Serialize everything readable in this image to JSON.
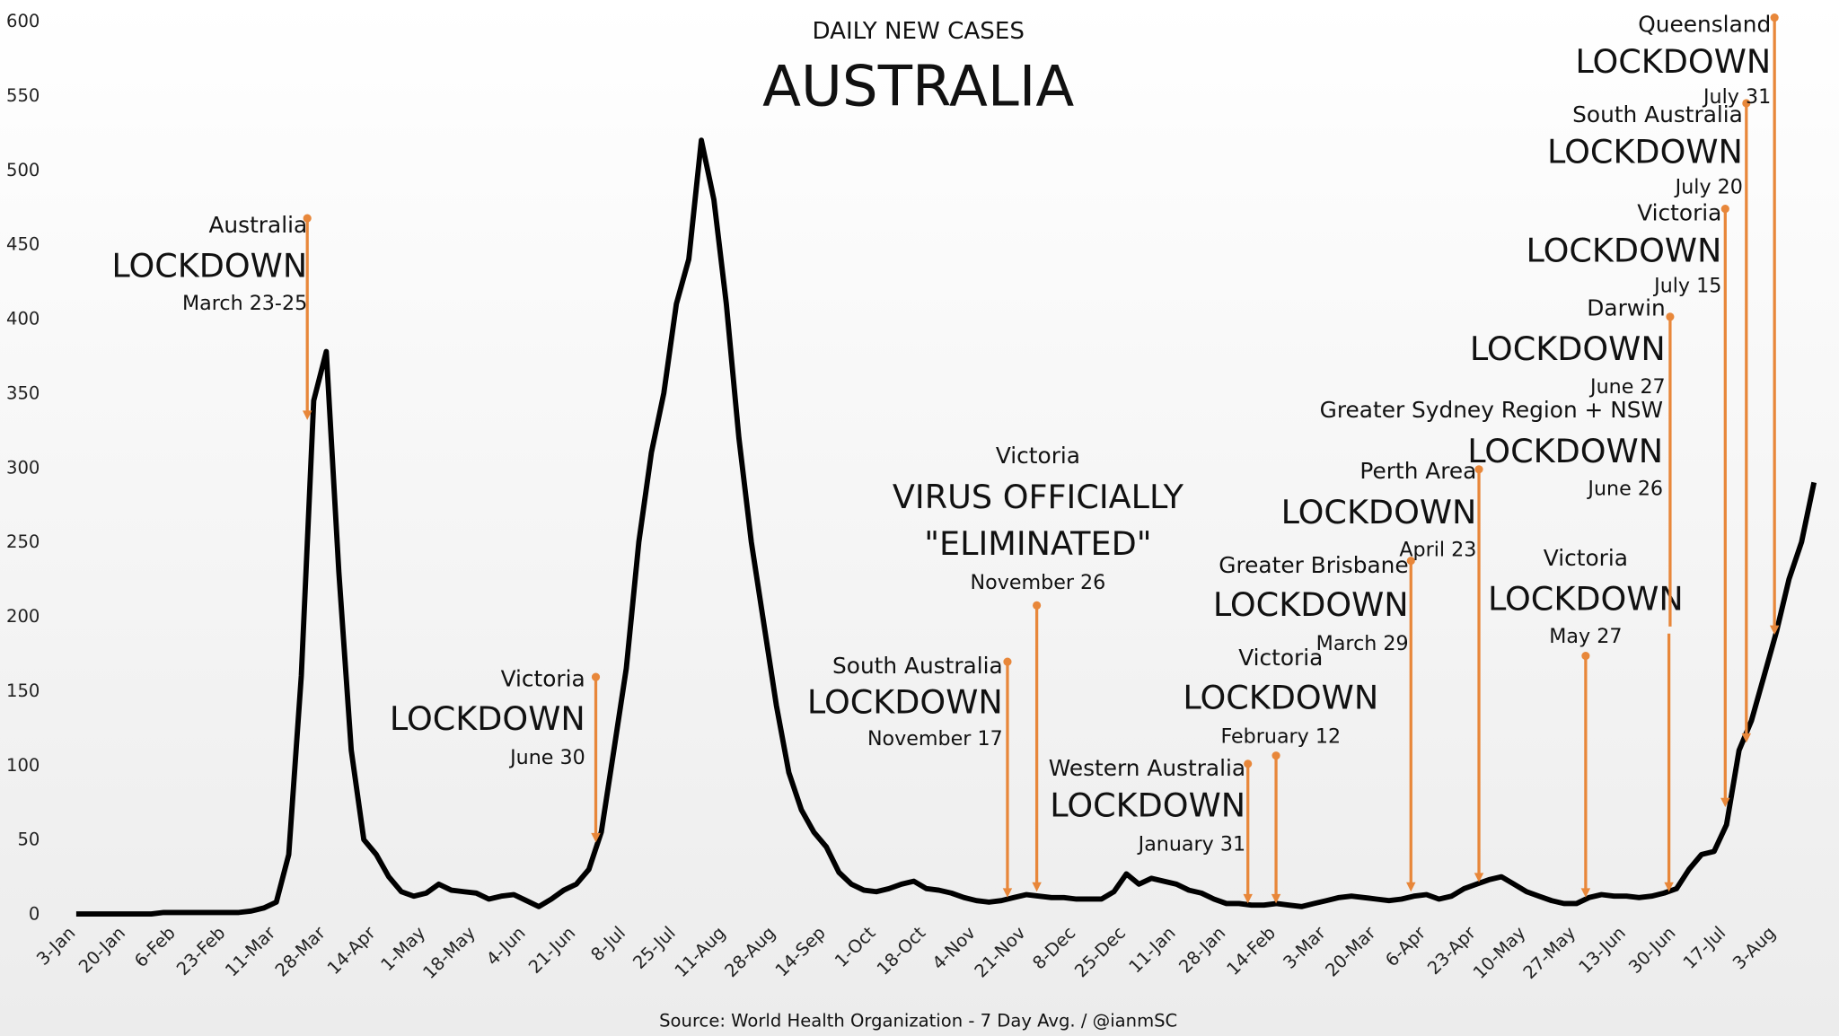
{
  "chart_data": {
    "type": "line",
    "title": "DAILY NEW CASES",
    "subtitle": "AUSTRALIA",
    "source": "Source: World Health Organization - 7 Day Avg. / @ianmSC",
    "color": "#000000",
    "annotation_color": "#e8873a",
    "ylim": [
      0,
      600
    ],
    "yticks": [
      0,
      50,
      100,
      150,
      200,
      250,
      300,
      350,
      400,
      450,
      500,
      550,
      600
    ],
    "grid": false,
    "categories": [
      "3-Jan",
      null,
      null,
      null,
      "20-Jan",
      null,
      null,
      null,
      "6-Feb",
      null,
      null,
      null,
      "23-Feb",
      null,
      null,
      null,
      "11-Mar",
      null,
      null,
      null,
      "28-Mar",
      null,
      null,
      null,
      "14-Apr",
      null,
      null,
      null,
      "1-May",
      null,
      null,
      null,
      "18-May",
      null,
      null,
      null,
      "4-Jun",
      null,
      null,
      null,
      "21-Jun",
      null,
      null,
      null,
      "8-Jul",
      null,
      null,
      null,
      "25-Jul",
      null,
      null,
      null,
      "11-Aug",
      null,
      null,
      null,
      "28-Aug",
      null,
      null,
      null,
      "14-Sep",
      null,
      null,
      null,
      "1-Oct",
      null,
      null,
      null,
      "18-Oct",
      null,
      null,
      null,
      "4-Nov",
      null,
      null,
      null,
      "21-Nov",
      null,
      null,
      null,
      "8-Dec",
      null,
      null,
      null,
      "25-Dec",
      null,
      null,
      null,
      "11-Jan",
      null,
      null,
      null,
      "28-Jan",
      null,
      null,
      null,
      "14-Feb",
      null,
      null,
      null,
      "3-Mar",
      null,
      null,
      null,
      "20-Mar",
      null,
      null,
      null,
      "6-Apr",
      null,
      null,
      null,
      "23-Apr",
      null,
      null,
      null,
      "10-May",
      null,
      null,
      null,
      "27-May",
      null,
      null,
      null,
      "13-Jun",
      null,
      null,
      null,
      "30-Jun",
      null,
      null,
      null,
      "17-Jul",
      null,
      null,
      null,
      "3-Aug",
      null,
      null,
      null
    ],
    "values": [
      0,
      0,
      0,
      0,
      0,
      0,
      0,
      1,
      1,
      1,
      1,
      1,
      1,
      1,
      2,
      4,
      8,
      40,
      160,
      345,
      378,
      230,
      110,
      50,
      40,
      25,
      15,
      12,
      14,
      20,
      16,
      15,
      14,
      10,
      12,
      13,
      9,
      5,
      10,
      16,
      20,
      30,
      55,
      110,
      165,
      250,
      310,
      350,
      410,
      440,
      520,
      480,
      410,
      320,
      250,
      195,
      140,
      95,
      70,
      55,
      45,
      28,
      20,
      16,
      15,
      17,
      20,
      22,
      17,
      16,
      14,
      11,
      9,
      8,
      9,
      11,
      13,
      12,
      11,
      11,
      10,
      10,
      10,
      15,
      27,
      20,
      24,
      22,
      20,
      16,
      14,
      10,
      7,
      7,
      6,
      6,
      7,
      6,
      5,
      7,
      9,
      11,
      12,
      11,
      10,
      9,
      10,
      12,
      13,
      10,
      12,
      17,
      20,
      23,
      25,
      20,
      15,
      12,
      9,
      7,
      7,
      11,
      13,
      12,
      12,
      11,
      12,
      14,
      17,
      30,
      40,
      42,
      60,
      110,
      130,
      160,
      190,
      225,
      250,
      290
    ],
    "annotations": [
      {
        "lines": [
          "Australia",
          "LOCKDOWN",
          "March 23-25"
        ]
      },
      {
        "lines": [
          "Victoria",
          "LOCKDOWN",
          "June 30"
        ]
      },
      {
        "lines": [
          "South Australia",
          "LOCKDOWN",
          "November 17"
        ]
      },
      {
        "lines": [
          "Victoria",
          "VIRUS OFFICIALLY",
          "\"ELIMINATED\"",
          "November 26"
        ]
      },
      {
        "lines": [
          "Western Australia",
          "LOCKDOWN",
          "January 31"
        ]
      },
      {
        "lines": [
          "Victoria",
          "LOCKDOWN",
          "February 12"
        ]
      },
      {
        "lines": [
          "Greater Brisbane",
          "LOCKDOWN",
          "March 29"
        ]
      },
      {
        "lines": [
          "Perth Area",
          "LOCKDOWN",
          "April 23"
        ]
      },
      {
        "lines": [
          "Victoria",
          "LOCKDOWN",
          "May 27"
        ]
      },
      {
        "lines": [
          "Greater Sydney Region + NSW",
          "LOCKDOWN",
          "June 26"
        ]
      },
      {
        "lines": [
          "Darwin",
          "LOCKDOWN",
          "June 27"
        ]
      },
      {
        "lines": [
          "Victoria",
          "LOCKDOWN",
          "July 15"
        ]
      },
      {
        "lines": [
          "South Australia",
          "LOCKDOWN",
          "July 20"
        ]
      },
      {
        "lines": [
          "Queensland",
          "LOCKDOWN",
          "July 31"
        ]
      }
    ]
  }
}
